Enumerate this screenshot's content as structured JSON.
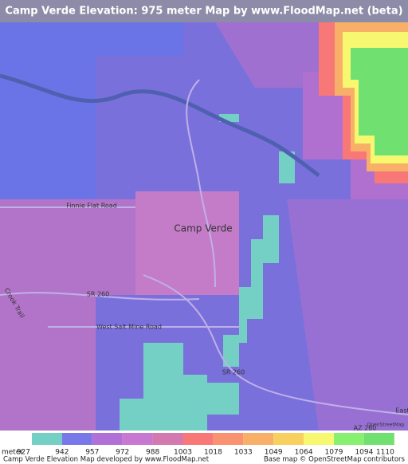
{
  "header": {
    "title": "Camp Verde Elevation: 975 meter Map by www.FloodMap.net (beta)"
  },
  "map": {
    "labels": [
      "Finnie Flat Road",
      "Camp Verde",
      "SR 260",
      "Crook Trail",
      "West Salt Mine Road",
      "SR 260",
      "AZ 260",
      "East",
      "OpenStreetMap"
    ]
  },
  "legend": {
    "unit": "meter",
    "ticks": [
      927,
      942,
      957,
      972,
      988,
      1003,
      1018,
      1033,
      1049,
      1064,
      1079,
      1094,
      1110
    ],
    "colors": [
      "#74d0c4",
      "#7878e8",
      "#b070d8",
      "#c878d0",
      "#d478b0",
      "#f87878",
      "#f89270",
      "#f8b068",
      "#f8d060",
      "#f8f870",
      "#88f070",
      "#70e070"
    ]
  },
  "footer": {
    "credit": "Camp Verde Elevation Map developed by www.FloodMap.net",
    "basemap": "Base map © OpenStreetMap contributors"
  }
}
